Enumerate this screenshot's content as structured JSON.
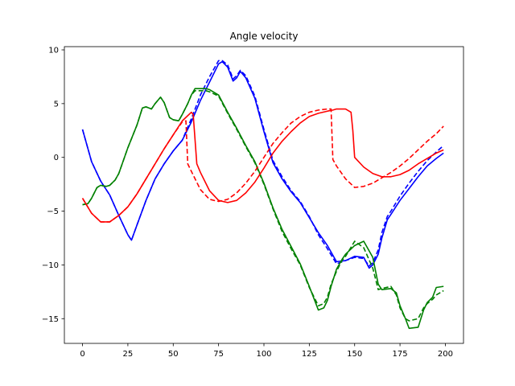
{
  "chart_data": {
    "type": "line",
    "title": "Angle velocity",
    "xlabel": "",
    "ylabel": "",
    "xlim": [
      -10,
      210
    ],
    "ylim": [
      -17.3,
      10.3
    ],
    "xticks": [
      0,
      25,
      50,
      75,
      100,
      125,
      150,
      175,
      200
    ],
    "yticks": [
      -15,
      -10,
      -5,
      0,
      5,
      10
    ],
    "grid": false,
    "legend": "none",
    "series": [
      {
        "color": "#0000ff",
        "style": "solid",
        "x": [
          0,
          5,
          10,
          15,
          20,
          25,
          27,
          30,
          35,
          40,
          45,
          50,
          55,
          60,
          65,
          70,
          75,
          77,
          80,
          83,
          85,
          87,
          90,
          95,
          100,
          105,
          110,
          115,
          120,
          125,
          130,
          135,
          140,
          145,
          150,
          155,
          158,
          160,
          163,
          165,
          168,
          170,
          175,
          180,
          185,
          190,
          195,
          199
        ],
        "y": [
          2.6,
          -0.4,
          -2.2,
          -3.5,
          -5.4,
          -7.2,
          -7.7,
          -6.3,
          -4.0,
          -2.0,
          -0.6,
          0.6,
          1.6,
          3.3,
          5.3,
          7.0,
          8.7,
          8.9,
          8.4,
          7.1,
          7.4,
          8.0,
          7.4,
          5.5,
          2.4,
          -0.5,
          -2.0,
          -3.2,
          -4.2,
          -5.6,
          -7.0,
          -8.2,
          -9.7,
          -9.6,
          -9.2,
          -9.3,
          -10.3,
          -10.0,
          -9.0,
          -7.5,
          -5.8,
          -5.3,
          -4.0,
          -2.9,
          -1.8,
          -0.8,
          -0.1,
          0.4
        ]
      },
      {
        "color": "#0000ff",
        "style": "dashed",
        "x": [
          0,
          5,
          10,
          15,
          20,
          25,
          27,
          30,
          35,
          40,
          45,
          50,
          55,
          60,
          65,
          70,
          75,
          77,
          80,
          83,
          85,
          87,
          90,
          95,
          100,
          105,
          110,
          115,
          120,
          125,
          130,
          135,
          140,
          145,
          150,
          155,
          158,
          160,
          163,
          165,
          168,
          170,
          175,
          180,
          185,
          190,
          195,
          199
        ],
        "y": [
          2.6,
          -0.4,
          -2.2,
          -3.5,
          -5.4,
          -7.2,
          -7.7,
          -6.3,
          -4.0,
          -2.0,
          -0.6,
          0.6,
          1.6,
          3.6,
          5.8,
          7.5,
          9.0,
          9.0,
          8.6,
          7.3,
          7.6,
          8.1,
          7.6,
          5.7,
          2.6,
          -0.3,
          -1.8,
          -3.1,
          -4.1,
          -5.5,
          -7.2,
          -8.5,
          -9.9,
          -9.6,
          -9.3,
          -9.4,
          -10.1,
          -9.8,
          -8.6,
          -7.0,
          -5.5,
          -5.0,
          -3.6,
          -2.4,
          -1.3,
          -0.3,
          0.5,
          1.1
        ]
      },
      {
        "color": "#008000",
        "style": "solid",
        "x": [
          0,
          3,
          5,
          8,
          10,
          13,
          15,
          18,
          20,
          25,
          30,
          33,
          35,
          38,
          40,
          43,
          45,
          48,
          50,
          53,
          55,
          58,
          60,
          62,
          65,
          68,
          70,
          75,
          80,
          85,
          90,
          95,
          100,
          105,
          110,
          115,
          120,
          125,
          130,
          133,
          135,
          137,
          140,
          143,
          145,
          150,
          155,
          160,
          163,
          165,
          170,
          173,
          175,
          178,
          180,
          185,
          188,
          190,
          193,
          195,
          199
        ],
        "y": [
          -4.4,
          -4.3,
          -3.8,
          -2.8,
          -2.6,
          -2.7,
          -2.6,
          -2.1,
          -1.5,
          0.9,
          3.0,
          4.6,
          4.7,
          4.5,
          5.0,
          5.6,
          5.1,
          3.7,
          3.5,
          3.4,
          4.0,
          5.0,
          5.8,
          6.4,
          6.4,
          6.4,
          6.3,
          5.8,
          4.2,
          2.7,
          1.1,
          -0.4,
          -2.4,
          -4.7,
          -6.7,
          -8.3,
          -9.9,
          -12.0,
          -14.2,
          -14.0,
          -13.3,
          -12.0,
          -10.4,
          -9.5,
          -9.0,
          -8.2,
          -7.8,
          -9.3,
          -11.8,
          -12.3,
          -12.2,
          -12.6,
          -13.8,
          -15.0,
          -15.9,
          -15.8,
          -14.2,
          -13.5,
          -13.0,
          -12.1,
          -12.0
        ]
      },
      {
        "color": "#008000",
        "style": "dashed",
        "x": [
          0,
          3,
          5,
          8,
          10,
          13,
          15,
          18,
          20,
          25,
          30,
          33,
          35,
          38,
          40,
          43,
          45,
          48,
          50,
          53,
          55,
          58,
          60,
          62,
          65,
          68,
          70,
          75,
          80,
          85,
          90,
          95,
          100,
          105,
          110,
          115,
          120,
          125,
          130,
          133,
          135,
          137,
          140,
          143,
          145,
          150,
          155,
          160,
          163,
          165,
          170,
          173,
          175,
          178,
          180,
          185,
          188,
          190,
          193,
          195,
          199
        ],
        "y": [
          -4.4,
          -4.3,
          -3.8,
          -2.8,
          -2.6,
          -2.7,
          -2.6,
          -2.1,
          -1.5,
          0.9,
          3.0,
          4.6,
          4.7,
          4.5,
          5.0,
          5.6,
          5.1,
          3.7,
          3.5,
          3.4,
          4.0,
          5.0,
          5.8,
          6.2,
          6.2,
          6.2,
          6.1,
          5.7,
          4.1,
          2.6,
          1.0,
          -0.5,
          -2.5,
          -4.8,
          -6.9,
          -8.5,
          -10.0,
          -12.1,
          -13.8,
          -13.6,
          -13.0,
          -11.8,
          -10.6,
          -9.6,
          -9.2,
          -7.8,
          -8.4,
          -10.3,
          -12.3,
          -12.2,
          -12.0,
          -12.8,
          -14.0,
          -15.0,
          -15.2,
          -15.0,
          -14.0,
          -13.6,
          -13.2,
          -12.8,
          -12.4
        ]
      },
      {
        "color": "#ff0000",
        "style": "solid",
        "x": [
          0,
          5,
          10,
          15,
          20,
          25,
          30,
          35,
          40,
          45,
          50,
          55,
          60,
          61,
          63,
          65,
          70,
          75,
          80,
          85,
          90,
          95,
          100,
          105,
          110,
          115,
          120,
          125,
          130,
          135,
          138,
          140,
          145,
          148,
          149,
          150,
          155,
          160,
          165,
          170,
          175,
          180,
          185,
          190,
          195,
          199
        ],
        "y": [
          -3.8,
          -5.2,
          -6.0,
          -6.0,
          -5.4,
          -4.6,
          -3.4,
          -2.0,
          -0.6,
          0.8,
          2.1,
          3.4,
          4.2,
          4.0,
          -0.6,
          -1.4,
          -3.1,
          -4.0,
          -4.2,
          -4.0,
          -3.3,
          -2.3,
          -1.0,
          0.4,
          1.5,
          2.4,
          3.2,
          3.8,
          4.1,
          4.3,
          4.4,
          4.5,
          4.5,
          4.2,
          2.5,
          0.0,
          -0.9,
          -1.5,
          -1.8,
          -1.8,
          -1.6,
          -1.2,
          -0.6,
          -0.1,
          0.4,
          0.7
        ]
      },
      {
        "color": "#ff0000",
        "style": "dashed",
        "x": [
          0,
          5,
          10,
          15,
          20,
          25,
          30,
          35,
          40,
          45,
          50,
          55,
          57,
          58,
          60,
          65,
          70,
          75,
          80,
          85,
          90,
          95,
          100,
          105,
          110,
          115,
          120,
          125,
          130,
          135,
          137,
          138,
          140,
          145,
          150,
          155,
          160,
          165,
          170,
          175,
          180,
          185,
          190,
          195,
          199
        ],
        "y": [
          -3.8,
          -5.2,
          -6.0,
          -6.0,
          -5.4,
          -4.6,
          -3.4,
          -2.0,
          -0.6,
          0.8,
          2.1,
          3.3,
          3.4,
          -0.6,
          -1.3,
          -3.0,
          -3.9,
          -4.1,
          -3.9,
          -3.3,
          -2.4,
          -1.3,
          0.0,
          1.3,
          2.3,
          3.2,
          3.8,
          4.2,
          4.4,
          4.5,
          4.5,
          -0.2,
          -0.8,
          -2.0,
          -2.8,
          -2.7,
          -2.4,
          -1.9,
          -1.4,
          -0.8,
          -0.1,
          0.7,
          1.5,
          2.2,
          2.9
        ]
      }
    ]
  }
}
